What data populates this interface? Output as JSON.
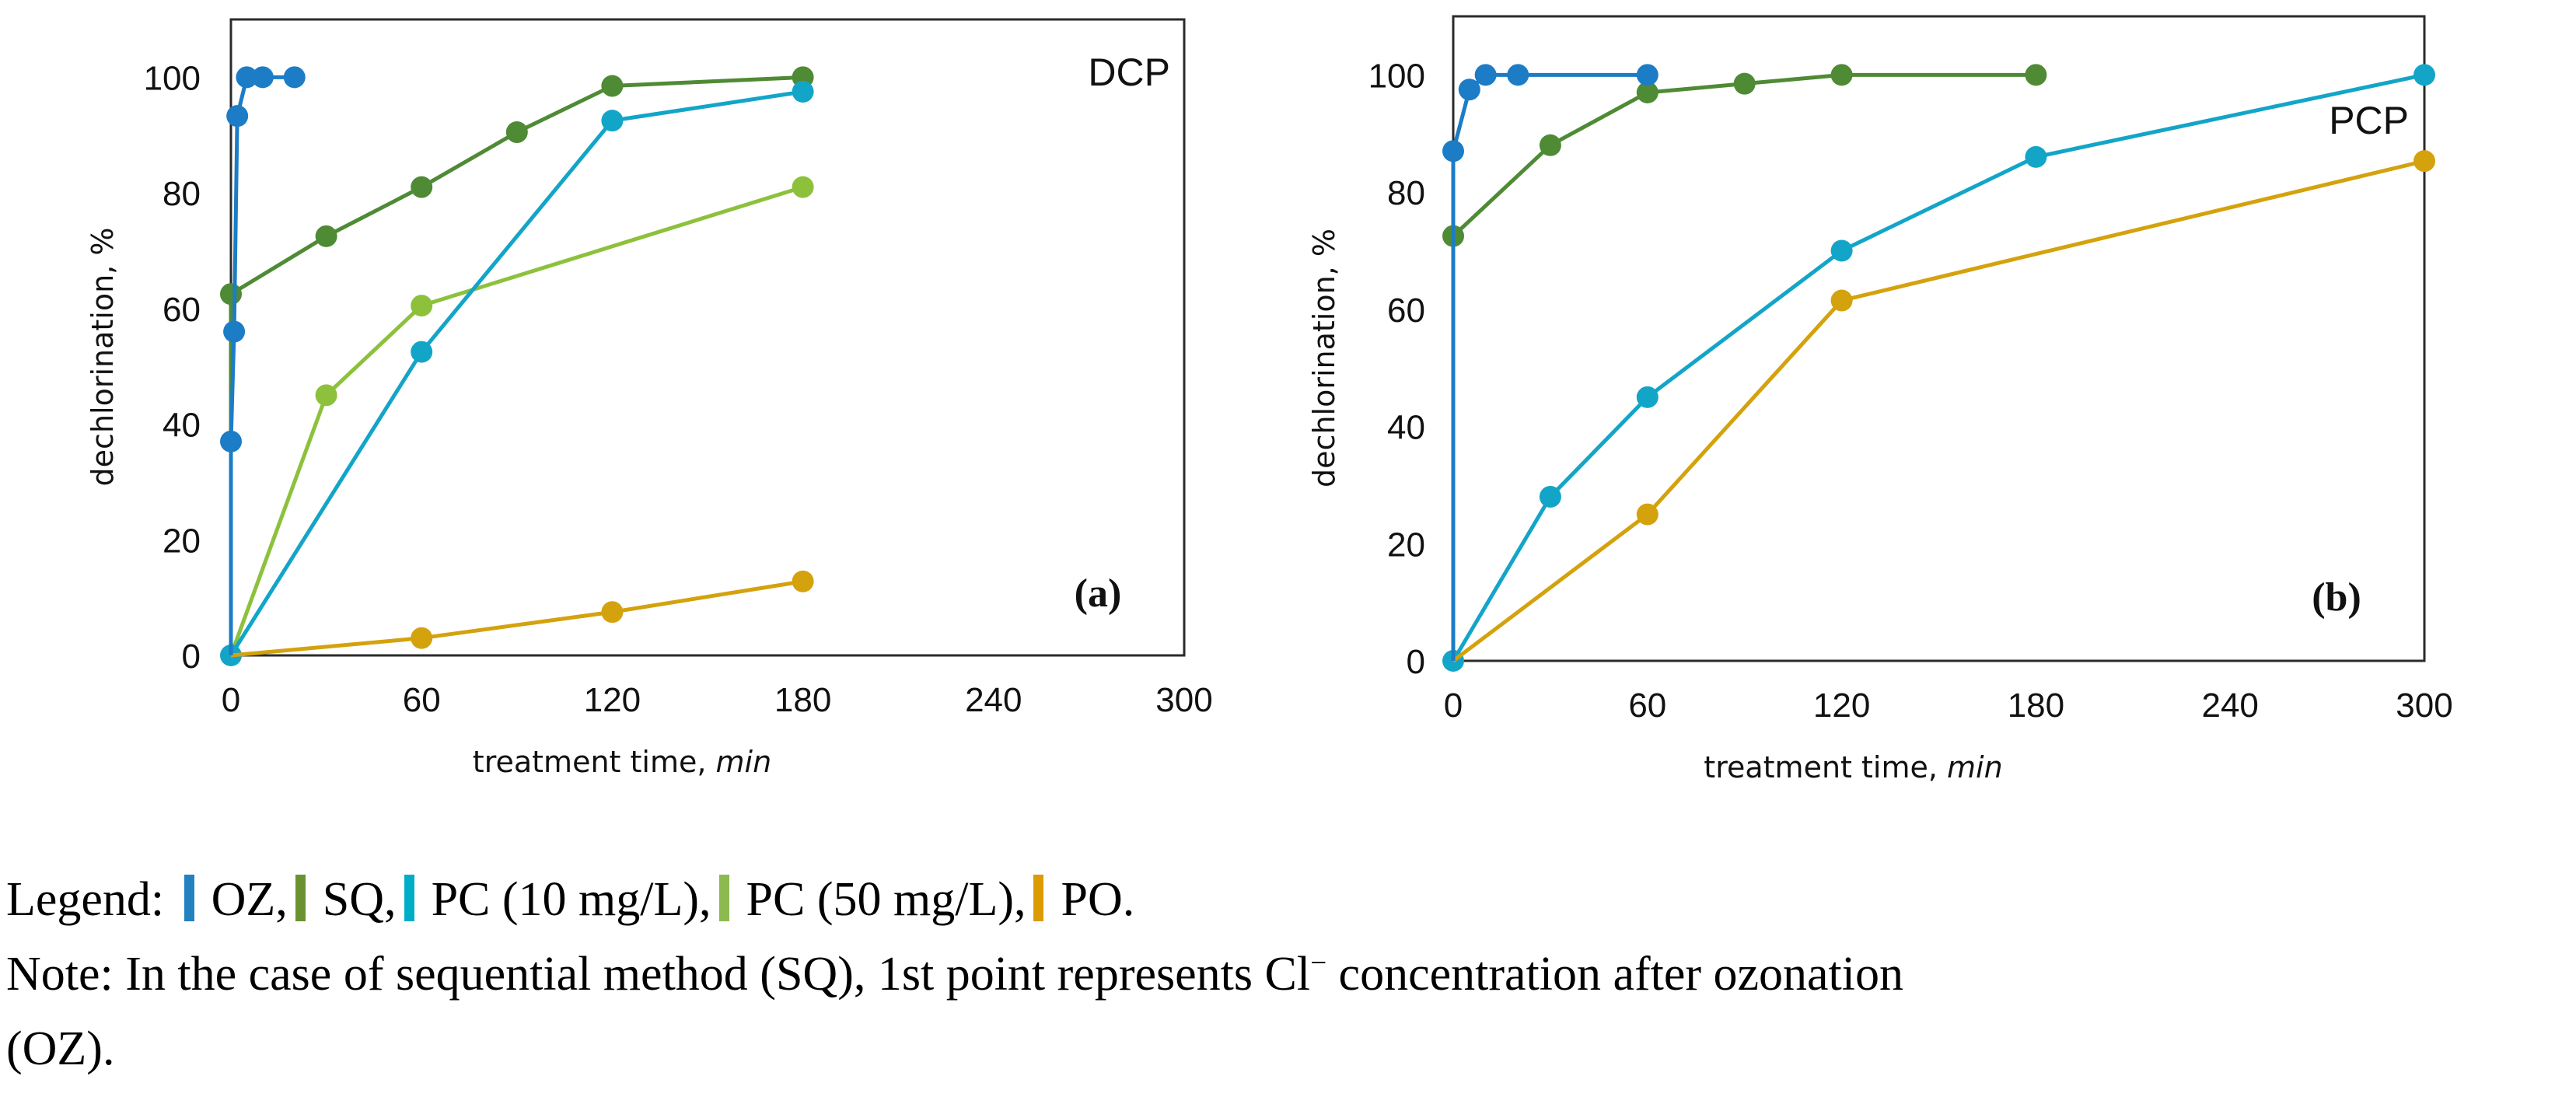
{
  "chart_data": [
    {
      "type": "line",
      "title": "DCP",
      "panel_label": "(a)",
      "xlabel": "treatment time, ",
      "xlabel_unit": "min",
      "ylabel": "dechlorination, %",
      "xlim": [
        0,
        300
      ],
      "ylim": [
        0,
        110
      ],
      "xticks": [
        0,
        60,
        120,
        180,
        240,
        300
      ],
      "yticks": [
        0,
        20,
        40,
        60,
        80,
        100
      ],
      "grid": false,
      "series": [
        {
          "name": "SQ",
          "color": "#4f8a35",
          "x": [
            0,
            0,
            30,
            60,
            90,
            120,
            180
          ],
          "y": [
            0,
            62.5,
            72.5,
            81,
            90.5,
            98.5,
            100
          ]
        },
        {
          "name": "PC (50 mg/L)",
          "color": "#8dc13c",
          "x": [
            0,
            30,
            60,
            180
          ],
          "y": [
            0,
            45,
            60.5,
            81
          ]
        },
        {
          "name": "PC (10 mg/L)",
          "color": "#13a5c8",
          "x": [
            0,
            60,
            120,
            180
          ],
          "y": [
            0,
            52.5,
            92.5,
            97.5
          ]
        },
        {
          "name": "PO",
          "color": "#d4a20d",
          "x": [
            0,
            60,
            120,
            180
          ],
          "y": [
            0,
            3,
            7.5,
            12.8
          ]
        },
        {
          "name": "OZ",
          "color": "#1c7cc6",
          "x": [
            0,
            0,
            1,
            2,
            5,
            10,
            20
          ],
          "y": [
            0,
            37,
            56,
            93.3,
            100,
            100,
            100
          ]
        }
      ]
    },
    {
      "type": "line",
      "title": "PCP",
      "panel_label": "(b)",
      "xlabel": "treatment time, ",
      "xlabel_unit": "min",
      "ylabel": "dechlorination, %",
      "xlim": [
        0,
        300
      ],
      "ylim": [
        0,
        110
      ],
      "xticks": [
        0,
        60,
        120,
        180,
        240,
        300
      ],
      "yticks": [
        0,
        20,
        40,
        60,
        80,
        100
      ],
      "grid": false,
      "series": [
        {
          "name": "SQ",
          "color": "#4f8a35",
          "x": [
            0,
            0,
            30,
            60,
            90,
            120,
            180
          ],
          "y": [
            0,
            72.5,
            88,
            97,
            98.5,
            100,
            100
          ]
        },
        {
          "name": "PC (10 mg/L)",
          "color": "#13a5c8",
          "x": [
            0,
            30,
            60,
            120,
            180,
            300
          ],
          "y": [
            0,
            28,
            45,
            70,
            86,
            100
          ]
        },
        {
          "name": "PO",
          "color": "#d4a20d",
          "x": [
            0,
            60,
            120,
            300
          ],
          "y": [
            0,
            25,
            61.5,
            85.3
          ]
        },
        {
          "name": "OZ",
          "color": "#1c7cc6",
          "x": [
            0,
            0,
            5,
            10,
            20,
            60
          ],
          "y": [
            0,
            87,
            97.5,
            100,
            100,
            100
          ]
        }
      ]
    }
  ],
  "legend": {
    "prefix": "Legend:",
    "items": [
      {
        "label": "OZ,",
        "color": "#2481c0"
      },
      {
        "label": "SQ,",
        "color": "#6a9231"
      },
      {
        "label": "PC (10 mg/L),",
        "color": "#00adc6"
      },
      {
        "label": "PC (50 mg/L),",
        "color": "#8cba4f"
      },
      {
        "label": "PO.",
        "color": "#dc9b00"
      }
    ]
  },
  "note": {
    "part1": "Note: In the case of sequential method (SQ), 1st point represents Cl",
    "superscript": "−",
    "part2": " concentration after ozonation",
    "line2": "(OZ)."
  }
}
